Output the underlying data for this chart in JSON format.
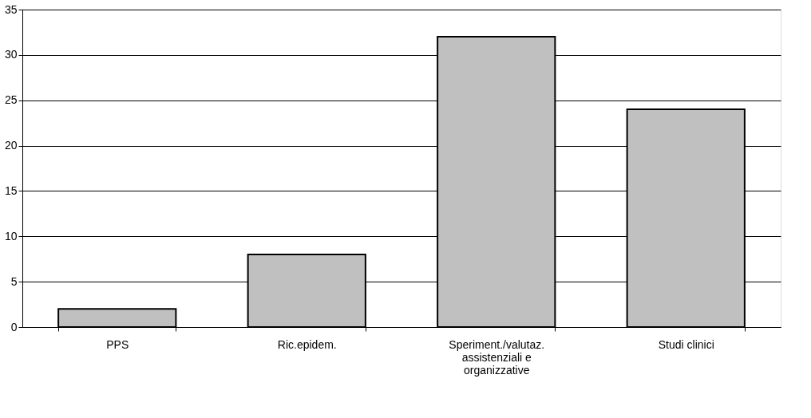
{
  "chart_data": {
    "type": "bar",
    "categories": [
      "PPS",
      "Ric.epidem.",
      "Speriment./valutaz. assistenziali e organizzative",
      "Studi clinici"
    ],
    "values": [
      2,
      8,
      32,
      24
    ],
    "color": "#c0c0c0",
    "ylim": [
      0,
      35
    ],
    "yticks": [
      0,
      5,
      10,
      15,
      20,
      25,
      30,
      35
    ],
    "grid": "y"
  }
}
